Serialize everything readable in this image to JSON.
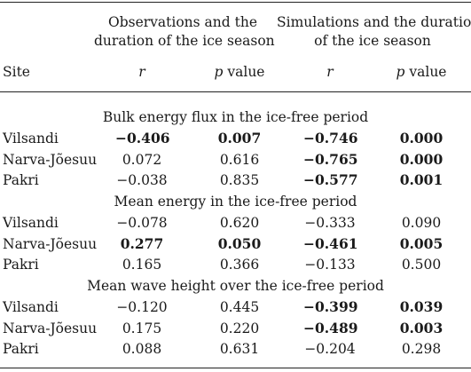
{
  "headers": {
    "site": "Site",
    "group1_line1": "Observations and the",
    "group1_line2": "duration of the ice season",
    "group2_line1": "Simulations and the duration",
    "group2_line2": "of the ice season",
    "r1": "r",
    "p1": "p",
    "p1_suffix": " value",
    "r2": "r",
    "p2": "p",
    "p2_suffix": " value"
  },
  "sections": [
    {
      "title": "Bulk energy flux in the ice-free period",
      "rows": [
        {
          "site": "Vilsandi",
          "obs_r": "−0.406",
          "obs_p": "0.007",
          "sim_r": "−0.746",
          "sim_p": "0.000",
          "bold": [
            true,
            true,
            true,
            true
          ]
        },
        {
          "site": "Narva-Jõesuu",
          "obs_r": "0.072",
          "obs_p": "0.616",
          "sim_r": "−0.765",
          "sim_p": "0.000",
          "bold": [
            false,
            false,
            true,
            true
          ]
        },
        {
          "site": "Pakri",
          "obs_r": "−0.038",
          "obs_p": "0.835",
          "sim_r": "−0.577",
          "sim_p": "0.001",
          "bold": [
            false,
            false,
            true,
            true
          ]
        }
      ]
    },
    {
      "title": "Mean energy in the ice-free period",
      "rows": [
        {
          "site": "Vilsandi",
          "obs_r": "−0.078",
          "obs_p": "0.620",
          "sim_r": "−0.333",
          "sim_p": "0.090",
          "bold": [
            false,
            false,
            false,
            false
          ]
        },
        {
          "site": "Narva-Jõesuu",
          "obs_r": "0.277",
          "obs_p": "0.050",
          "sim_r": "−0.461",
          "sim_p": "0.005",
          "bold": [
            true,
            true,
            true,
            true
          ]
        },
        {
          "site": "Pakri",
          "obs_r": "0.165",
          "obs_p": "0.366",
          "sim_r": "−0.133",
          "sim_p": "0.500",
          "bold": [
            false,
            false,
            false,
            false
          ]
        }
      ]
    },
    {
      "title": "Mean wave height over the ice-free period",
      "rows": [
        {
          "site": "Vilsandi",
          "obs_r": "−0.120",
          "obs_p": "0.445",
          "sim_r": "−0.399",
          "sim_p": "0.039",
          "bold": [
            false,
            false,
            true,
            true
          ]
        },
        {
          "site": "Narva-Jõesuu",
          "obs_r": "0.175",
          "obs_p": "0.220",
          "sim_r": "−0.489",
          "sim_p": "0.003",
          "bold": [
            false,
            false,
            true,
            true
          ]
        },
        {
          "site": "Pakri",
          "obs_r": "0.088",
          "obs_p": "0.631",
          "sim_r": "−0.204",
          "sim_p": "0.298",
          "bold": [
            false,
            false,
            false,
            false
          ]
        }
      ]
    }
  ]
}
